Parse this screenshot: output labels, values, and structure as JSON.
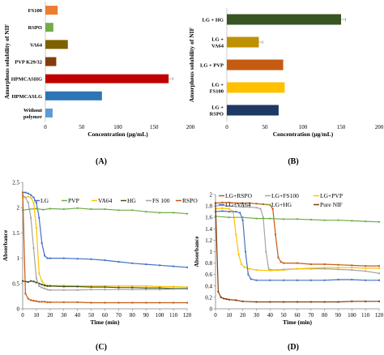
{
  "chart_data": [
    {
      "id": "A",
      "type": "bar",
      "orientation": "horizontal",
      "panel_label": "(A)",
      "xlabel": "Concentration (µg/mL)",
      "ylabel": "Amorphous solubility of NIF",
      "xlim": [
        0,
        200
      ],
      "xticks": [
        0,
        50,
        100,
        150,
        200
      ],
      "grid": false,
      "categories": [
        "FS100",
        "RSPO",
        "VA64",
        "PVP K29/32",
        "HPMCASHG",
        "HPMCASLG",
        "Without polymer"
      ],
      "category_lines": [
        [
          "FS100"
        ],
        [
          "RSPO"
        ],
        [
          "VA64"
        ],
        [
          "PVP K29/32"
        ],
        [
          "HPMCASHG"
        ],
        [
          "HPMCASLG"
        ],
        [
          "Without",
          "polymer"
        ]
      ],
      "values": [
        17,
        11,
        31,
        15,
        170,
        78,
        10
      ],
      "errors": [
        0,
        0,
        0,
        0,
        6,
        0,
        0
      ],
      "colors": [
        "#ed7d31",
        "#70ad47",
        "#7f6000",
        "#843c0c",
        "#c00000",
        "#2e75b6",
        "#5b9bd5"
      ]
    },
    {
      "id": "B",
      "type": "bar",
      "orientation": "horizontal",
      "panel_label": "(B)",
      "xlabel": "Concentration (µg/mL)",
      "ylabel": "Amorphous solubility of NIF",
      "xlim": [
        0,
        200
      ],
      "xticks": [
        0,
        50,
        100,
        150,
        200
      ],
      "grid": false,
      "categories": [
        "LG + HG",
        "LG + VA64",
        "LG + PVP",
        "LG + FS100",
        "LG + RSPO"
      ],
      "category_lines": [
        [
          "LG + HG"
        ],
        [
          "LG +",
          "VA64"
        ],
        [
          "LG + PVP"
        ],
        [
          "LG +",
          "FS100"
        ],
        [
          "LG +",
          "RSPO"
        ]
      ],
      "values": [
        150,
        42,
        74,
        76,
        68
      ],
      "errors": [
        6,
        5,
        0,
        0,
        0
      ],
      "colors": [
        "#375623",
        "#bf9000",
        "#c55a11",
        "#ffc000",
        "#1f3864"
      ]
    },
    {
      "id": "C",
      "type": "line",
      "panel_label": "(C)",
      "xlabel": "Time (min)",
      "ylabel": "Absorbance",
      "xlim": [
        0,
        120
      ],
      "ylim": [
        0,
        2.5
      ],
      "xticks": [
        0,
        10,
        20,
        30,
        40,
        50,
        60,
        70,
        80,
        90,
        100,
        110,
        120
      ],
      "yticks": [
        0,
        0.5,
        1,
        1.5,
        2,
        2.5
      ],
      "grid": false,
      "legend_position": "top",
      "series": [
        {
          "name": "LG",
          "color": "#4472c4",
          "x": [
            0,
            2,
            4,
            6,
            8,
            10,
            12,
            14,
            16,
            18,
            20,
            30,
            40,
            50,
            60,
            70,
            80,
            90,
            100,
            110,
            120
          ],
          "y": [
            2.3,
            2.3,
            2.28,
            2.25,
            2.2,
            2.1,
            1.8,
            1.3,
            1.05,
            1.0,
            1.0,
            1.0,
            0.99,
            0.98,
            0.96,
            0.93,
            0.9,
            0.88,
            0.86,
            0.84,
            0.82
          ]
        },
        {
          "name": "PVP",
          "color": "#70ad47",
          "x": [
            0,
            5,
            10,
            15,
            20,
            30,
            40,
            50,
            60,
            70,
            80,
            90,
            100,
            110,
            120
          ],
          "y": [
            1.95,
            1.97,
            1.98,
            1.96,
            1.98,
            1.97,
            1.99,
            1.97,
            1.97,
            1.95,
            1.95,
            1.92,
            1.9,
            1.9,
            1.88
          ]
        },
        {
          "name": "VA64",
          "color": "#ffc000",
          "x": [
            0,
            2,
            4,
            6,
            8,
            10,
            12,
            14,
            16,
            18,
            20,
            30,
            40,
            50,
            60,
            70,
            80,
            90,
            100,
            110,
            120
          ],
          "y": [
            2.2,
            2.2,
            2.22,
            2.2,
            2.1,
            1.6,
            0.7,
            0.55,
            0.48,
            0.46,
            0.46,
            0.46,
            0.45,
            0.45,
            0.45,
            0.45,
            0.45,
            0.45,
            0.44,
            0.44,
            0.43
          ]
        },
        {
          "name": "HG",
          "color": "#375623",
          "x": [
            0,
            2,
            4,
            6,
            8,
            10,
            12,
            14,
            16,
            18,
            20,
            30,
            40,
            50,
            60,
            70,
            80,
            90,
            100,
            110,
            120
          ],
          "y": [
            0.55,
            0.54,
            0.53,
            0.55,
            0.54,
            0.52,
            0.5,
            0.48,
            0.46,
            0.45,
            0.45,
            0.44,
            0.44,
            0.43,
            0.43,
            0.42,
            0.42,
            0.41,
            0.41,
            0.4,
            0.4
          ]
        },
        {
          "name": "FS 100",
          "color": "#a5a5a5",
          "x": [
            0,
            2,
            4,
            6,
            8,
            10,
            12,
            14,
            16,
            18,
            20,
            30,
            40,
            50,
            60,
            70,
            80,
            90,
            100,
            110,
            120
          ],
          "y": [
            2.25,
            2.2,
            2.1,
            1.8,
            1.2,
            0.6,
            0.45,
            0.42,
            0.4,
            0.38,
            0.37,
            0.37,
            0.37,
            0.38,
            0.38,
            0.38,
            0.38,
            0.38,
            0.38,
            0.39,
            0.39
          ]
        },
        {
          "name": "RSPO",
          "color": "#c55a11",
          "x": [
            0,
            2,
            4,
            6,
            8,
            10,
            12,
            14,
            16,
            18,
            20,
            30,
            40,
            50,
            60,
            70,
            80,
            90,
            100,
            110,
            120
          ],
          "y": [
            2.3,
            0.3,
            0.2,
            0.17,
            0.16,
            0.15,
            0.14,
            0.14,
            0.14,
            0.13,
            0.13,
            0.13,
            0.13,
            0.12,
            0.12,
            0.12,
            0.12,
            0.12,
            0.12,
            0.12,
            0.12
          ]
        }
      ]
    },
    {
      "id": "D",
      "type": "line",
      "panel_label": "(D)",
      "xlabel": "Time (min)",
      "ylabel": "Absorbance",
      "xlim": [
        0,
        120
      ],
      "ylim": [
        0,
        2
      ],
      "xticks": [
        0,
        10,
        20,
        30,
        40,
        50,
        60,
        70,
        80,
        90,
        100,
        110,
        120
      ],
      "yticks": [
        0,
        0.2,
        0.4,
        0.6,
        0.8,
        1,
        1.2,
        1.4,
        1.6,
        1.8,
        2
      ],
      "grid": false,
      "legend_position": "top",
      "series": [
        {
          "name": "LG+RSPO",
          "color": "#c55a11",
          "x": [
            0,
            5,
            10,
            15,
            20,
            25,
            30,
            35,
            40,
            42,
            44,
            46,
            48,
            50,
            60,
            70,
            80,
            90,
            100,
            110,
            120
          ],
          "y": [
            1.85,
            1.86,
            1.86,
            1.85,
            1.85,
            1.85,
            1.84,
            1.83,
            1.82,
            1.75,
            1.3,
            0.9,
            0.82,
            0.8,
            0.8,
            0.78,
            0.78,
            0.77,
            0.76,
            0.75,
            0.75
          ]
        },
        {
          "name": "LG+FS100",
          "color": "#a5a5a5",
          "x": [
            0,
            5,
            10,
            15,
            20,
            25,
            30,
            33,
            35,
            37,
            39,
            41,
            45,
            50,
            60,
            70,
            80,
            90,
            100,
            110,
            120
          ],
          "y": [
            1.8,
            1.81,
            1.8,
            1.79,
            1.78,
            1.78,
            1.77,
            1.75,
            1.6,
            1.0,
            0.7,
            0.68,
            0.68,
            0.69,
            0.7,
            0.7,
            0.7,
            0.69,
            0.68,
            0.66,
            0.62
          ]
        },
        {
          "name": "LG+PVP",
          "color": "#ffc000",
          "x": [
            0,
            5,
            10,
            13,
            15,
            17,
            19,
            21,
            25,
            30,
            40,
            50,
            60,
            70,
            80,
            90,
            100,
            110,
            120
          ],
          "y": [
            1.75,
            1.76,
            1.75,
            1.7,
            1.3,
            0.95,
            0.78,
            0.73,
            0.7,
            0.68,
            0.67,
            0.68,
            0.7,
            0.71,
            0.72,
            0.72,
            0.72,
            0.71,
            0.71
          ]
        },
        {
          "name": "LG+VA64",
          "color": "#4472c4",
          "x": [
            0,
            5,
            10,
            15,
            18,
            20,
            22,
            24,
            26,
            30,
            40,
            50,
            60,
            70,
            80,
            90,
            100,
            110,
            120
          ],
          "y": [
            1.7,
            1.71,
            1.7,
            1.7,
            1.68,
            1.55,
            1.0,
            0.6,
            0.52,
            0.5,
            0.5,
            0.5,
            0.5,
            0.5,
            0.5,
            0.51,
            0.51,
            0.5,
            0.5
          ]
        },
        {
          "name": "LG+HG",
          "color": "#70ad47",
          "x": [
            0,
            10,
            20,
            30,
            40,
            50,
            60,
            70,
            80,
            90,
            100,
            110,
            120
          ],
          "y": [
            1.62,
            1.6,
            1.6,
            1.58,
            1.58,
            1.57,
            1.57,
            1.56,
            1.55,
            1.55,
            1.54,
            1.53,
            1.52
          ]
        },
        {
          "name": "Pure NIF",
          "color": "#843c0c",
          "x": [
            0,
            2,
            4,
            6,
            8,
            10,
            15,
            20,
            30,
            40,
            50,
            60,
            70,
            80,
            90,
            100,
            110,
            120
          ],
          "y": [
            1.85,
            0.3,
            0.2,
            0.18,
            0.17,
            0.16,
            0.15,
            0.13,
            0.12,
            0.12,
            0.12,
            0.12,
            0.12,
            0.12,
            0.12,
            0.13,
            0.13,
            0.13
          ]
        }
      ]
    }
  ]
}
